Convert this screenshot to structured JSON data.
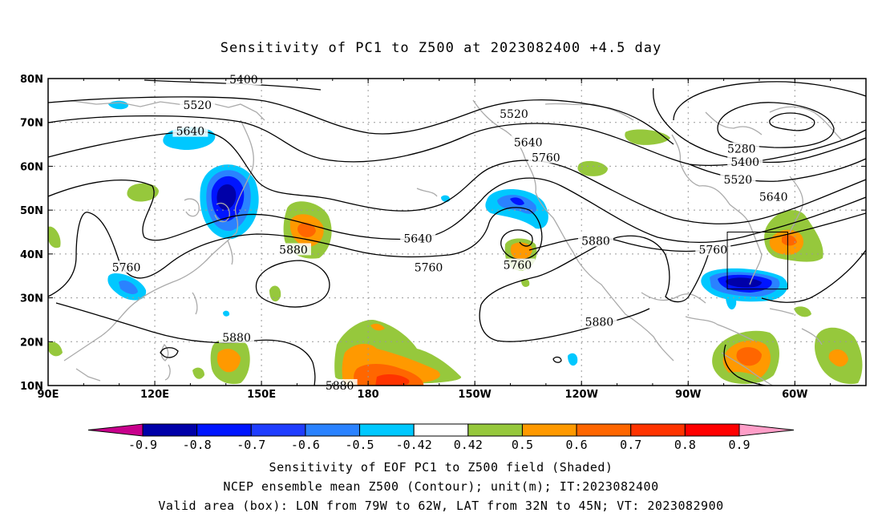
{
  "title": "Sensitivity of PC1 to Z500 at 2023082400 +4.5 day",
  "map": {
    "lat_labels": [
      "80N",
      "70N",
      "60N",
      "50N",
      "40N",
      "30N",
      "20N",
      "10N"
    ],
    "lon_labels": [
      "90E",
      "120E",
      "150E",
      "180",
      "150W",
      "120W",
      "90W",
      "60W"
    ],
    "contour_labels": [
      {
        "text": "5400",
        "lon": 145,
        "lat": 79.8
      },
      {
        "text": "5520",
        "lon": 132,
        "lat": 74
      },
      {
        "text": "5640",
        "lon": 130,
        "lat": 68
      },
      {
        "text": "5520",
        "lon": -139,
        "lat": 72
      },
      {
        "text": "5640",
        "lon": -135,
        "lat": 65.5
      },
      {
        "text": "5760",
        "lon": -130,
        "lat": 62
      },
      {
        "text": "5280",
        "lon": -75,
        "lat": 64
      },
      {
        "text": "5400",
        "lon": -74,
        "lat": 61
      },
      {
        "text": "5520",
        "lon": -76,
        "lat": 57
      },
      {
        "text": "5640",
        "lon": -66,
        "lat": 53
      },
      {
        "text": "5760",
        "lon": -83,
        "lat": 41
      },
      {
        "text": "5880",
        "lon": -116,
        "lat": 43
      },
      {
        "text": "5640",
        "lon": -166,
        "lat": 43.5
      },
      {
        "text": "5760",
        "lon": -163,
        "lat": 37
      },
      {
        "text": "5760",
        "lon": -138,
        "lat": 37.5
      },
      {
        "text": "5880",
        "lon": -115,
        "lat": 24.5
      },
      {
        "text": "5880",
        "lon": 159,
        "lat": 41
      },
      {
        "text": "5760",
        "lon": 112,
        "lat": 37
      },
      {
        "text": "5880",
        "lon": 143,
        "lat": 21
      },
      {
        "text": "5880",
        "lon": 172,
        "lat": 10
      }
    ],
    "valid_box": {
      "lon_west": -79,
      "lon_east": -62,
      "lat_south": 32,
      "lat_north": 45
    }
  },
  "colorbar": {
    "labels": [
      "-0.9",
      "-0.8",
      "-0.7",
      "-0.6",
      "-0.5",
      "-0.42",
      "0.42",
      "0.5",
      "0.6",
      "0.7",
      "0.8",
      "0.9"
    ],
    "colors": [
      "#0000a8",
      "#0015ff",
      "#1f3dff",
      "#2a82ff",
      "#00c8ff",
      "#ffffff",
      "#96c83c",
      "#ff9900",
      "#ff6600",
      "#ff3300",
      "#ff0000"
    ],
    "under_color": "#c8008c",
    "over_color": "#ff9ec8"
  },
  "captions": [
    "Sensitivity of EOF PC1 to Z500 field (Shaded)",
    "NCEP ensemble mean Z500 (Contour); unit(m); IT:2023082400",
    "Valid area (box): LON from 79W to 62W, LAT from 32N to 45N; VT: 2023082900"
  ]
}
